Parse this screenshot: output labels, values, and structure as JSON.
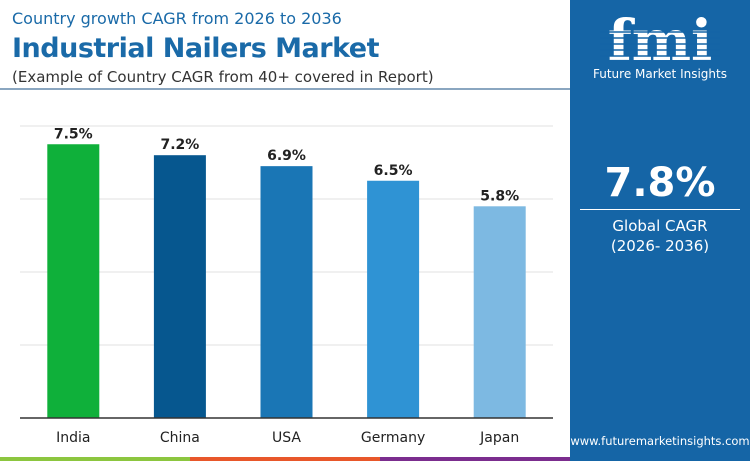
{
  "header": {
    "subtitle": "Country growth CAGR from 2026 to 2036",
    "title": "Industrial Nailers Market",
    "note": "(Example of Country CAGR from 40+ covered in Report)"
  },
  "sidebar": {
    "logo_text": "fmi",
    "brand": "Future Market Insights",
    "global_value": "7.8%",
    "global_label": "Global CAGR",
    "global_period": "(2026- 2036)",
    "url": "www.futuremarketinsights.com",
    "background": "#1565a6"
  },
  "footer_colors": [
    "#8cc63f",
    "#e8572a",
    "#7b2d8e"
  ],
  "chart_data": {
    "type": "bar",
    "categories": [
      "India",
      "China",
      "USA",
      "Germany",
      "Japan"
    ],
    "values": [
      7.5,
      7.2,
      6.9,
      6.5,
      5.8
    ],
    "labels": [
      "7.5%",
      "7.2%",
      "6.9%",
      "6.5%",
      "5.8%"
    ],
    "colors": [
      "#0fb03a",
      "#06578f",
      "#1a76b5",
      "#2f93d4",
      "#7db9e2"
    ],
    "ylim": [
      0,
      8
    ],
    "grid": true,
    "xlabel": "",
    "ylabel": ""
  }
}
